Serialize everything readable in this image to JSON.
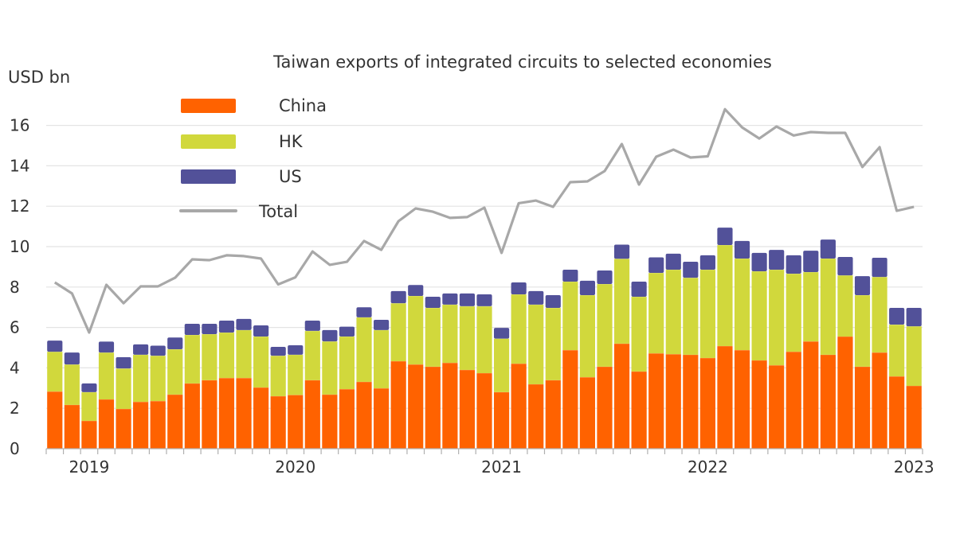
{
  "chart_data": {
    "type": "bar",
    "subtype": "stacked-bar-with-line",
    "title": "Taiwan exports of integrated circuits to selected economies",
    "ylabel": "USD bn",
    "xlabel": "",
    "ylim": [
      0,
      17
    ],
    "yticks": [
      0,
      2,
      4,
      6,
      8,
      10,
      12,
      14,
      16
    ],
    "grid": true,
    "legend_position": "top-left",
    "x_start": "2018-11",
    "x_end": "2023-01",
    "x_tick_labels": [
      {
        "label": "2019",
        "index": 2
      },
      {
        "label": "2020",
        "index": 14
      },
      {
        "label": "2021",
        "index": 26
      },
      {
        "label": "2022",
        "index": 38
      },
      {
        "label": "2023",
        "index": 50
      }
    ],
    "categories": [
      "2018-11",
      "2018-12",
      "2019-01",
      "2019-02",
      "2019-03",
      "2019-04",
      "2019-05",
      "2019-06",
      "2019-07",
      "2019-08",
      "2019-09",
      "2019-10",
      "2019-11",
      "2019-12",
      "2020-01",
      "2020-02",
      "2020-03",
      "2020-04",
      "2020-05",
      "2020-06",
      "2020-07",
      "2020-08",
      "2020-09",
      "2020-10",
      "2020-11",
      "2020-12",
      "2021-01",
      "2021-02",
      "2021-03",
      "2021-04",
      "2021-05",
      "2021-06",
      "2021-07",
      "2021-08",
      "2021-09",
      "2021-10",
      "2021-11",
      "2021-12",
      "2022-01",
      "2022-02",
      "2022-03",
      "2022-04",
      "2022-05",
      "2022-06",
      "2022-07",
      "2022-08",
      "2022-09",
      "2022-10",
      "2022-11",
      "2022-12",
      "2023-01"
    ],
    "series": [
      {
        "name": "China",
        "kind": "bar",
        "color": "#FF6200",
        "values": [
          2.83,
          2.17,
          1.38,
          2.44,
          1.97,
          2.32,
          2.36,
          2.68,
          3.23,
          3.39,
          3.5,
          3.5,
          3.03,
          2.6,
          2.66,
          3.39,
          2.68,
          2.95,
          3.31,
          2.99,
          4.33,
          4.17,
          4.06,
          4.25,
          3.9,
          3.74,
          2.8,
          4.21,
          3.19,
          3.39,
          4.88,
          3.54,
          4.06,
          5.2,
          3.82,
          4.72,
          4.68,
          4.65,
          4.49,
          5.08,
          4.88,
          4.37,
          4.13,
          4.8,
          5.31,
          4.65,
          5.55,
          4.06,
          4.76,
          3.58,
          3.11
        ]
      },
      {
        "name": "HK",
        "kind": "bar",
        "color": "#D1D83C",
        "values": [
          1.97,
          2.0,
          1.42,
          2.32,
          2.0,
          2.33,
          2.24,
          2.24,
          2.4,
          2.28,
          2.25,
          2.37,
          2.52,
          2.0,
          1.99,
          2.44,
          2.63,
          2.6,
          3.19,
          2.88,
          2.87,
          3.39,
          2.91,
          2.88,
          3.15,
          3.31,
          2.65,
          3.43,
          3.94,
          3.58,
          3.39,
          4.06,
          4.09,
          4.2,
          3.7,
          3.98,
          4.18,
          3.81,
          4.37,
          5.0,
          4.53,
          4.41,
          4.73,
          3.86,
          3.43,
          4.76,
          3.03,
          3.54,
          3.74,
          2.56,
          2.95
        ]
      },
      {
        "name": "US",
        "kind": "bar",
        "color": "#525199",
        "values": [
          0.55,
          0.59,
          0.43,
          0.54,
          0.56,
          0.51,
          0.5,
          0.58,
          0.55,
          0.51,
          0.59,
          0.55,
          0.55,
          0.44,
          0.47,
          0.51,
          0.56,
          0.49,
          0.5,
          0.51,
          0.6,
          0.54,
          0.55,
          0.55,
          0.63,
          0.59,
          0.53,
          0.59,
          0.67,
          0.63,
          0.59,
          0.71,
          0.67,
          0.7,
          0.75,
          0.77,
          0.79,
          0.79,
          0.71,
          0.86,
          0.87,
          0.91,
          0.98,
          0.91,
          1.06,
          0.94,
          0.91,
          0.94,
          0.95,
          0.83,
          0.91
        ]
      },
      {
        "name": "Total",
        "kind": "line",
        "color": "#A8A8A8",
        "values": [
          8.23,
          7.68,
          5.75,
          8.11,
          7.2,
          8.03,
          8.03,
          8.46,
          9.37,
          9.33,
          9.57,
          9.53,
          9.41,
          8.13,
          8.48,
          9.76,
          9.1,
          9.25,
          10.28,
          9.84,
          11.26,
          11.89,
          11.73,
          11.42,
          11.46,
          11.93,
          9.69,
          12.15,
          12.28,
          11.97,
          13.19,
          13.23,
          13.74,
          15.08,
          13.07,
          14.45,
          14.8,
          14.41,
          14.47,
          16.8,
          15.9,
          15.35,
          15.94,
          15.5,
          15.67,
          15.63,
          15.63,
          13.94,
          14.92,
          11.77,
          11.97
        ]
      }
    ]
  }
}
